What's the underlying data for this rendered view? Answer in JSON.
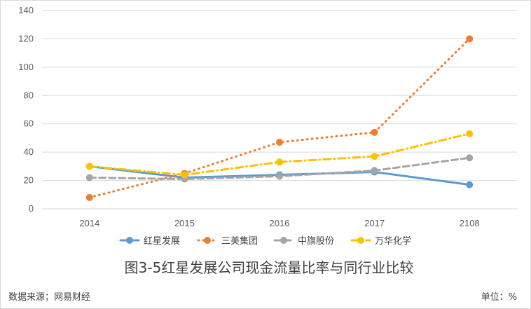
{
  "chart_data": {
    "type": "line",
    "categories": [
      "2014",
      "2015",
      "2016",
      "2017",
      "2108"
    ],
    "ylim": [
      0,
      140
    ],
    "yticks": [
      "0",
      "20",
      "40",
      "60",
      "80",
      "100",
      "120",
      "140"
    ],
    "grid": "horizontal",
    "legend_position": "bottom",
    "series": [
      {
        "name": "红星发展",
        "values": [
          30,
          22,
          24,
          26,
          17
        ],
        "color": "#5b9bd5",
        "style": "solid"
      },
      {
        "name": "三美集团",
        "values": [
          8,
          25,
          47,
          54,
          120
        ],
        "color": "#ed7d31",
        "style": "dotted"
      },
      {
        "name": "中旗股份",
        "values": [
          22,
          21,
          23,
          27,
          36
        ],
        "color": "#a5a5a5",
        "style": "dashed"
      },
      {
        "name": "万华化学",
        "values": [
          30,
          24,
          33,
          37,
          53
        ],
        "color": "#ffc000",
        "style": "dash-dot"
      }
    ]
  },
  "caption": "图3-5红星发展公司现金流量比率与同行业比较",
  "footer": {
    "source": "数据来源；网易财经",
    "unit": "单位：%"
  }
}
